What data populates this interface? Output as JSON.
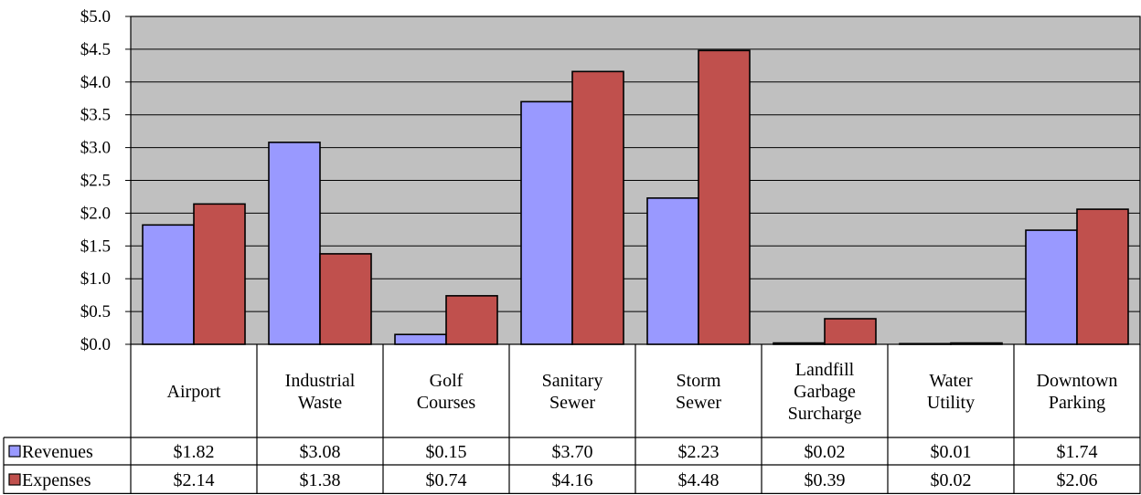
{
  "chart_data": {
    "type": "bar",
    "title": "",
    "xlabel": "",
    "ylabel": "",
    "ylim": [
      0,
      5
    ],
    "grid": true,
    "legend": "data-table-left",
    "yticks": [
      "$0.0",
      "$0.5",
      "$1.0",
      "$1.5",
      "$2.0",
      "$2.5",
      "$3.0",
      "$3.5",
      "$4.0",
      "$4.5",
      "$5.0"
    ],
    "categories": [
      [
        "Airport"
      ],
      [
        "Industrial",
        "Waste"
      ],
      [
        "Golf",
        "Courses"
      ],
      [
        "Sanitary",
        "Sewer"
      ],
      [
        "Storm",
        "Sewer"
      ],
      [
        "Landfill",
        "Garbage",
        "Surcharge"
      ],
      [
        "Water",
        "Utility"
      ],
      [
        "Downtown",
        "Parking"
      ]
    ],
    "series": [
      {
        "name": "Revenues",
        "color": "#9999ff",
        "values": [
          1.82,
          3.08,
          0.15,
          3.7,
          2.23,
          0.02,
          0.01,
          1.74
        ],
        "labels": [
          "$1.82",
          "$3.08",
          "$0.15",
          "$3.70",
          "$2.23",
          "$0.02",
          "$0.01",
          "$1.74"
        ]
      },
      {
        "name": "Expenses",
        "color": "#c0504d",
        "values": [
          2.14,
          1.38,
          0.74,
          4.16,
          4.48,
          0.39,
          0.02,
          2.06
        ],
        "labels": [
          "$2.14",
          "$1.38",
          "$0.74",
          "$4.16",
          "$4.48",
          "$0.39",
          "$0.02",
          "$2.06"
        ]
      }
    ],
    "plot_background": "#c0c0c0"
  }
}
